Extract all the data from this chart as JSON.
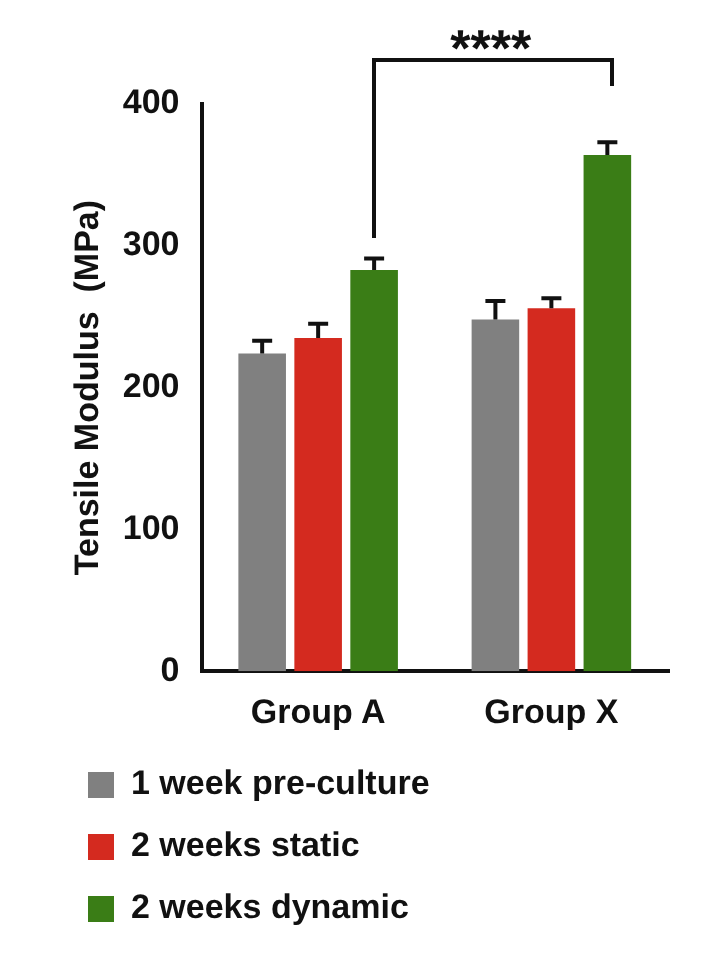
{
  "chart_data": {
    "type": "bar",
    "ylabel": "Tensile Modulus  (MPa)",
    "categories": [
      "Group A",
      "Group X"
    ],
    "series": [
      {
        "name": "1 week pre-culture",
        "color": "#808080",
        "values": [
          224,
          248
        ],
        "errors": [
          9,
          13
        ]
      },
      {
        "name": "2 weeks static",
        "color": "#d42a1f",
        "values": [
          235,
          256
        ],
        "errors": [
          10,
          7
        ]
      },
      {
        "name": "2 weeks dynamic",
        "color": "#3a7d16",
        "values": [
          283,
          364
        ],
        "errors": [
          8,
          9
        ]
      }
    ],
    "ylim": [
      0,
      400
    ],
    "yticks": [
      0,
      100,
      200,
      300,
      400
    ],
    "grid": false,
    "legend": "bottom",
    "annotations": [
      "****"
    ]
  }
}
